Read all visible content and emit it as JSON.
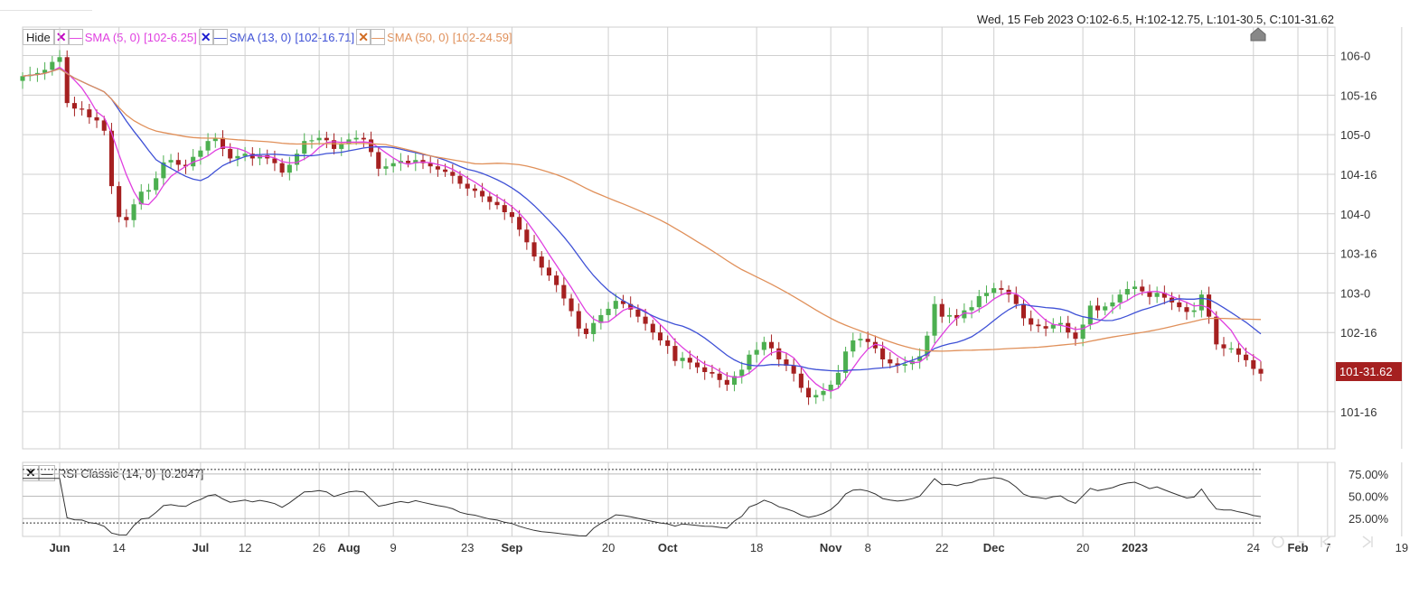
{
  "header": {
    "ohlc": "Wed, 15 Feb 2023  O:102-6.5, H:102-12.75, L:101-30.5, C:101-31.62"
  },
  "legend": {
    "hide_label": "Hide",
    "remove_glyph": "✕",
    "style_glyph": "—",
    "indicators": [
      {
        "label": "SMA (5, 0)",
        "value": "[102-6.25]",
        "color": "#e040e0",
        "x_color": "#c000c0"
      },
      {
        "label": "SMA (13, 0)",
        "value": "[102-16.71]",
        "color": "#3f51d6",
        "x_color": "#1a1ad0"
      },
      {
        "label": "SMA (50, 0)",
        "value": "[102-24.59]",
        "color": "#e0905a",
        "x_color": "#d06a20"
      }
    ]
  },
  "rsi_legend": {
    "label": "RSI Classic (14, 0)",
    "value": "[0.2047]"
  },
  "last_price_label": "101-31.62",
  "colors": {
    "up": "#4caf50",
    "down": "#a52020",
    "sma5": "#e040e0",
    "sma13": "#3f51d6",
    "sma50": "#e0905a",
    "grid": "#cfcfcf",
    "rsi": "#333333",
    "last_price_bg": "#a52020"
  },
  "chart_data": {
    "type": "candlestick",
    "y_ticks": [
      {
        "label": "106-0",
        "value": 106.0
      },
      {
        "label": "105-16",
        "value": 105.5
      },
      {
        "label": "105-0",
        "value": 105.0
      },
      {
        "label": "104-16",
        "value": 104.5
      },
      {
        "label": "104-0",
        "value": 104.0
      },
      {
        "label": "103-16",
        "value": 103.5
      },
      {
        "label": "103-0",
        "value": 103.0
      },
      {
        "label": "102-16",
        "value": 102.5
      },
      {
        "label": "101-16",
        "value": 101.5
      }
    ],
    "ylim": [
      101.03,
      106.36
    ],
    "x_ticks": [
      {
        "label": "Jun",
        "i": 5,
        "major": true
      },
      {
        "label": "14",
        "i": 13,
        "major": false
      },
      {
        "label": "Jul",
        "i": 24,
        "major": true
      },
      {
        "label": "12",
        "i": 30,
        "major": false
      },
      {
        "label": "26",
        "i": 40,
        "major": false
      },
      {
        "label": "Aug",
        "i": 44,
        "major": true
      },
      {
        "label": "9",
        "i": 50,
        "major": false
      },
      {
        "label": "23",
        "i": 60,
        "major": false
      },
      {
        "label": "Sep",
        "i": 66,
        "major": true
      },
      {
        "label": "20",
        "i": 79,
        "major": false
      },
      {
        "label": "Oct",
        "i": 87,
        "major": true
      },
      {
        "label": "18",
        "i": 99,
        "major": false
      },
      {
        "label": "Nov",
        "i": 109,
        "major": true
      },
      {
        "label": "8",
        "i": 114,
        "major": false
      },
      {
        "label": "22",
        "i": 124,
        "major": false
      },
      {
        "label": "Dec",
        "i": 131,
        "major": true
      },
      {
        "label": "20",
        "i": 143,
        "major": false
      },
      {
        "label": "2023",
        "i": 150,
        "major": true
      },
      {
        "label": "24",
        "i": 166,
        "major": false
      },
      {
        "label": "Feb",
        "i": 172,
        "major": true
      },
      {
        "label": "7",
        "i": 176,
        "major": false
      },
      {
        "label": "19",
        "i": 186,
        "major": false
      }
    ],
    "close": [
      105.74,
      105.76,
      105.78,
      105.82,
      105.92,
      105.98,
      105.4,
      105.33,
      105.32,
      105.22,
      105.18,
      105.05,
      104.35,
      103.96,
      103.92,
      104.12,
      104.28,
      104.3,
      104.45,
      104.65,
      104.68,
      104.62,
      104.6,
      104.72,
      104.8,
      104.92,
      104.96,
      104.82,
      104.7,
      104.73,
      104.76,
      104.7,
      104.74,
      104.7,
      104.64,
      104.52,
      104.62,
      104.76,
      104.92,
      104.93,
      104.96,
      104.93,
      104.82,
      104.88,
      104.94,
      104.96,
      104.94,
      104.78,
      104.57,
      104.6,
      104.64,
      104.67,
      104.64,
      104.68,
      104.64,
      104.6,
      104.56,
      104.53,
      104.48,
      104.38,
      104.32,
      104.29,
      104.22,
      104.15,
      104.11,
      104.02,
      103.96,
      103.8,
      103.64,
      103.46,
      103.32,
      103.22,
      103.1,
      102.93,
      102.77,
      102.55,
      102.48,
      102.62,
      102.72,
      102.8,
      102.9,
      102.86,
      102.79,
      102.7,
      102.61,
      102.5,
      102.4,
      102.33,
      102.14,
      102.18,
      102.12,
      102.06,
      102.0,
      101.98,
      101.9,
      101.84,
      101.95,
      102.03,
      102.22,
      102.28,
      102.38,
      102.3,
      102.16,
      102.08,
      101.98,
      101.8,
      101.68,
      101.71,
      101.76,
      101.84,
      101.99,
      102.26,
      102.4,
      102.42,
      102.38,
      102.3,
      102.16,
      102.11,
      102.08,
      102.1,
      102.14,
      102.2,
      102.46,
      102.86,
      102.7,
      102.72,
      102.68,
      102.78,
      102.82,
      102.96,
      103.0,
      103.06,
      103.04,
      102.98,
      102.86,
      102.68,
      102.6,
      102.58,
      102.55,
      102.6,
      102.62,
      102.5,
      102.42,
      102.6,
      102.84,
      102.78,
      102.83,
      102.88,
      102.98,
      103.05,
      103.08,
      103.02,
      102.95,
      103.0,
      102.94,
      102.88,
      102.82,
      102.76,
      102.78,
      102.98,
      102.7,
      102.35,
      102.3,
      102.3,
      102.22,
      102.15,
      102.04,
      101.98
    ],
    "ohlc_last": {
      "date": "Wed, 15 Feb 2023",
      "open": "102-6.5",
      "high": "102-12.75",
      "low": "101-30.5",
      "close": "101-31.62"
    },
    "rsi_ticks": [
      {
        "label": "75.00%",
        "value": 75
      },
      {
        "label": "50.00%",
        "value": 50
      },
      {
        "label": "25.00%",
        "value": 25
      }
    ],
    "rsi_ylim": [
      5,
      88
    ],
    "rsi_levels": [
      80,
      20
    ],
    "sma_periods": [
      5,
      13,
      50
    ]
  }
}
